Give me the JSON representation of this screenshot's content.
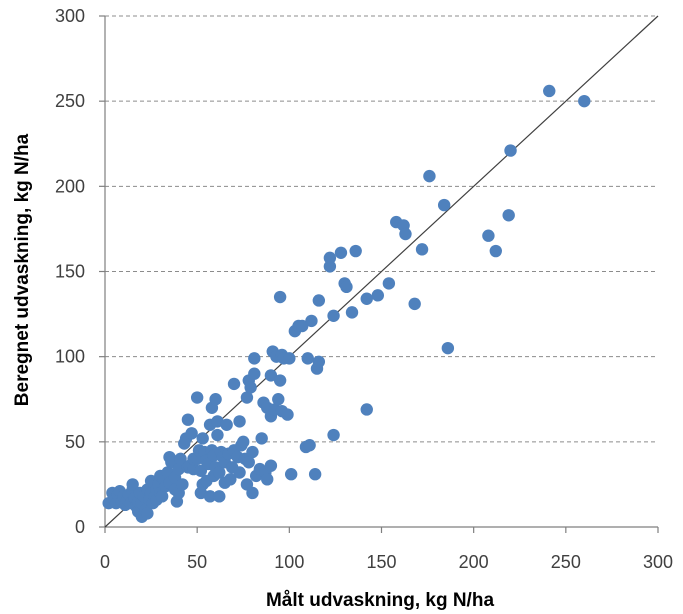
{
  "chart_data": {
    "type": "scatter",
    "xlabel": "Målt udvaskning, kg N/ha",
    "ylabel": "Beregnet udvaskning, kg N/ha",
    "xlim": [
      0,
      300
    ],
    "ylim": [
      0,
      300
    ],
    "xticks": [
      "0",
      "50",
      "100",
      "150",
      "200",
      "250",
      "300"
    ],
    "yticks": [
      "0",
      "50",
      "100",
      "150",
      "200",
      "250",
      "300"
    ],
    "grid": "horizontal dashed",
    "reference_line": "1:1",
    "marker_color": "#4f81bd",
    "points": [
      [
        2,
        14
      ],
      [
        4,
        20
      ],
      [
        5,
        16
      ],
      [
        6,
        14
      ],
      [
        7,
        19
      ],
      [
        8,
        21
      ],
      [
        9,
        15
      ],
      [
        10,
        18
      ],
      [
        11,
        13
      ],
      [
        12,
        16
      ],
      [
        13,
        19
      ],
      [
        14,
        14
      ],
      [
        15,
        22
      ],
      [
        15,
        25
      ],
      [
        16,
        17
      ],
      [
        17,
        12
      ],
      [
        18,
        9
      ],
      [
        18,
        15
      ],
      [
        19,
        20
      ],
      [
        20,
        14
      ],
      [
        20,
        6
      ],
      [
        21,
        18
      ],
      [
        22,
        10
      ],
      [
        23,
        22
      ],
      [
        23,
        8
      ],
      [
        24,
        16
      ],
      [
        25,
        20
      ],
      [
        25,
        27
      ],
      [
        26,
        14
      ],
      [
        27,
        18
      ],
      [
        28,
        22
      ],
      [
        28,
        16
      ],
      [
        29,
        25
      ],
      [
        30,
        20
      ],
      [
        30,
        30
      ],
      [
        31,
        18
      ],
      [
        32,
        28
      ],
      [
        33,
        24
      ],
      [
        34,
        32
      ],
      [
        35,
        26
      ],
      [
        35,
        41
      ],
      [
        36,
        38
      ],
      [
        38,
        22
      ],
      [
        38,
        29
      ],
      [
        39,
        15
      ],
      [
        40,
        34
      ],
      [
        40,
        20
      ],
      [
        41,
        40
      ],
      [
        42,
        25
      ],
      [
        43,
        49
      ],
      [
        44,
        52
      ],
      [
        45,
        63
      ],
      [
        45,
        35
      ],
      [
        46,
        36
      ],
      [
        47,
        55
      ],
      [
        48,
        34
      ],
      [
        48,
        40
      ],
      [
        50,
        76
      ],
      [
        50,
        40
      ],
      [
        51,
        45
      ],
      [
        52,
        33
      ],
      [
        52,
        20
      ],
      [
        53,
        52
      ],
      [
        53,
        25
      ],
      [
        54,
        44
      ],
      [
        55,
        27
      ],
      [
        55,
        39
      ],
      [
        56,
        37
      ],
      [
        57,
        60
      ],
      [
        57,
        18
      ],
      [
        58,
        70
      ],
      [
        58,
        45
      ],
      [
        59,
        30
      ],
      [
        59,
        42
      ],
      [
        60,
        75
      ],
      [
        60,
        35
      ],
      [
        61,
        62
      ],
      [
        61,
        54
      ],
      [
        62,
        32
      ],
      [
        62,
        18
      ],
      [
        63,
        44
      ],
      [
        64,
        41
      ],
      [
        65,
        38
      ],
      [
        65,
        26
      ],
      [
        66,
        60
      ],
      [
        67,
        43
      ],
      [
        68,
        28
      ],
      [
        69,
        35
      ],
      [
        70,
        84
      ],
      [
        70,
        45
      ],
      [
        72,
        41
      ],
      [
        73,
        32
      ],
      [
        73,
        62
      ],
      [
        74,
        48
      ],
      [
        75,
        50
      ],
      [
        76,
        40
      ],
      [
        77,
        76
      ],
      [
        77,
        25
      ],
      [
        78,
        86
      ],
      [
        78,
        38
      ],
      [
        79,
        82
      ],
      [
        80,
        44
      ],
      [
        80,
        20
      ],
      [
        81,
        90
      ],
      [
        81,
        99
      ],
      [
        82,
        30
      ],
      [
        84,
        34
      ],
      [
        85,
        52
      ],
      [
        86,
        73
      ],
      [
        87,
        32
      ],
      [
        88,
        70
      ],
      [
        88,
        28
      ],
      [
        90,
        36
      ],
      [
        90,
        89
      ],
      [
        90,
        65
      ],
      [
        91,
        103
      ],
      [
        92,
        69
      ],
      [
        93,
        100
      ],
      [
        94,
        75
      ],
      [
        95,
        86
      ],
      [
        95,
        135
      ],
      [
        96,
        68
      ],
      [
        96,
        101
      ],
      [
        97,
        99
      ],
      [
        99,
        66
      ],
      [
        100,
        99
      ],
      [
        101,
        31
      ],
      [
        103,
        115
      ],
      [
        105,
        118
      ],
      [
        107,
        118
      ],
      [
        109,
        47
      ],
      [
        110,
        99
      ],
      [
        111,
        48
      ],
      [
        112,
        121
      ],
      [
        114,
        31
      ],
      [
        115,
        93
      ],
      [
        116,
        133
      ],
      [
        116,
        97
      ],
      [
        122,
        153
      ],
      [
        122,
        158
      ],
      [
        124,
        124
      ],
      [
        124,
        54
      ],
      [
        128,
        161
      ],
      [
        130,
        143
      ],
      [
        131,
        141
      ],
      [
        134,
        126
      ],
      [
        136,
        162
      ],
      [
        142,
        69
      ],
      [
        142,
        134
      ],
      [
        148,
        136
      ],
      [
        154,
        143
      ],
      [
        158,
        179
      ],
      [
        162,
        177
      ],
      [
        163,
        172
      ],
      [
        168,
        131
      ],
      [
        172,
        163
      ],
      [
        176,
        206
      ],
      [
        184,
        189
      ],
      [
        186,
        105
      ],
      [
        208,
        171
      ],
      [
        212,
        162
      ],
      [
        219,
        183
      ],
      [
        220,
        221
      ],
      [
        241,
        256
      ],
      [
        260,
        250
      ]
    ]
  }
}
